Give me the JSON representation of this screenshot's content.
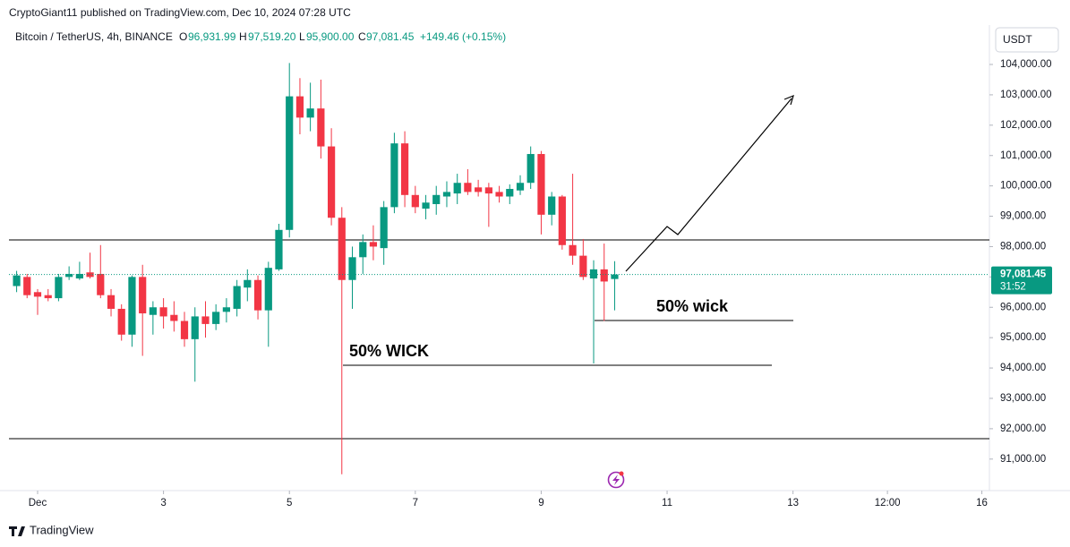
{
  "header": {
    "publisher": "CryptoGiant11 published on TradingView.com, Dec 10, 2024 07:28 UTC"
  },
  "legend": {
    "symbol": "Bitcoin / TetherUS, 4h, BINANCE",
    "o_label": "O",
    "o": "96,931.99",
    "h_label": "H",
    "h": "97,519.20",
    "l_label": "L",
    "l": "95,900.00",
    "c_label": "C",
    "c": "97,081.45",
    "change": "+149.46 (+0.15%)"
  },
  "currency": "USDT",
  "footer": "TradingView",
  "chart_data": {
    "type": "candlestick",
    "x": [
      0.667,
      0.833,
      1,
      1.167,
      1.333,
      1.5,
      1.667,
      1.833,
      2,
      2.167,
      2.333,
      2.5,
      2.667,
      2.833,
      3,
      3.167,
      3.333,
      3.5,
      3.667,
      3.833,
      4,
      4.167,
      4.333,
      4.5,
      4.667,
      4.833,
      5,
      5.167,
      5.333,
      5.5,
      5.667,
      5.833,
      6,
      6.167,
      6.333,
      6.5,
      6.667,
      6.833,
      7,
      7.167,
      7.333,
      7.5,
      7.667,
      7.833,
      8,
      8.167,
      8.333,
      8.5,
      8.667,
      8.833,
      9,
      9.167,
      9.333,
      9.5,
      9.667,
      9.833,
      10,
      10.167
    ],
    "open": [
      96700,
      97000,
      96500,
      96400,
      96300,
      97000,
      96950,
      97150,
      97100,
      96400,
      95950,
      95100,
      97000,
      95750,
      96000,
      95750,
      95550,
      94950,
      95700,
      95450,
      95850,
      95950,
      96650,
      96900,
      95900,
      97250,
      98550,
      102950,
      102250,
      102550,
      101300,
      98950,
      96900,
      97650,
      98150,
      97950,
      99300,
      101400,
      99700,
      99250,
      99400,
      99650,
      99750,
      100100,
      99950,
      99950,
      99800,
      99650,
      99850,
      100100,
      101050,
      99050,
      99650,
      98050,
      97700,
      96950,
      97250,
      96931.99
    ],
    "high": [
      97200,
      97100,
      96600,
      96600,
      97100,
      97350,
      97500,
      97800,
      98050,
      96600,
      96100,
      97050,
      97400,
      96200,
      96300,
      96200,
      95850,
      96000,
      96200,
      96100,
      96300,
      96900,
      97250,
      97050,
      97500,
      98750,
      104050,
      103550,
      103400,
      103500,
      101900,
      99300,
      98000,
      98400,
      98700,
      99500,
      101750,
      101800,
      100000,
      99700,
      100000,
      100150,
      100400,
      100550,
      100200,
      100100,
      100000,
      100050,
      100350,
      101300,
      101150,
      99800,
      99700,
      100400,
      98250,
      97550,
      98100,
      97519.2
    ],
    "low": [
      96500,
      96300,
      95750,
      96200,
      96200,
      96900,
      96900,
      96950,
      96300,
      95700,
      94900,
      94700,
      94400,
      95100,
      95300,
      95200,
      94700,
      93550,
      95000,
      95250,
      95500,
      95700,
      96200,
      95600,
      94700,
      97200,
      98300,
      101700,
      101800,
      100900,
      98700,
      90500,
      95950,
      97100,
      97550,
      97400,
      99100,
      99300,
      99100,
      98900,
      99050,
      99300,
      99400,
      99700,
      99650,
      98650,
      99450,
      99400,
      99700,
      99900,
      98400,
      98700,
      97900,
      97400,
      96900,
      94150,
      95550,
      95900
    ],
    "close": [
      97050,
      96400,
      96350,
      96300,
      97000,
      97100,
      97100,
      97000,
      96400,
      95950,
      95100,
      97000,
      95800,
      96000,
      95700,
      95550,
      94950,
      95700,
      95450,
      95850,
      96000,
      96700,
      96900,
      95900,
      97300,
      98550,
      102950,
      102250,
      102550,
      101300,
      98950,
      96900,
      97650,
      98150,
      98000,
      99300,
      101400,
      99700,
      99300,
      99450,
      99700,
      99800,
      100100,
      99800,
      99800,
      99750,
      99650,
      99900,
      100100,
      101050,
      99050,
      99650,
      98050,
      97700,
      97000,
      97250,
      96850,
      97081.45
    ],
    "up_color": "#089981",
    "down_color": "#f23645",
    "xlim": [
      0.545,
      16.12
    ],
    "xticks": [
      {
        "value": 1,
        "label": "Dec"
      },
      3,
      5,
      7,
      9,
      11,
      13,
      {
        "value": 14.5,
        "label": "12:00"
      },
      16
    ],
    "ylim": [
      90050,
      105180
    ],
    "yticks": [
      {
        "value": 91000,
        "label": "91,000.00"
      },
      {
        "value": 92000,
        "label": "92,000.00"
      },
      {
        "value": 93000,
        "label": "93,000.00"
      },
      {
        "value": 94000,
        "label": "94,000.00"
      },
      {
        "value": 95000,
        "label": "95,000.00"
      },
      {
        "value": 96000,
        "label": "96,000.00"
      },
      {
        "value": 97000,
        "label": "97,000.00"
      },
      {
        "value": 98000,
        "label": "98,000.00"
      },
      {
        "value": 99000,
        "label": "99,000.00"
      },
      {
        "value": 100000,
        "label": "100,000.00"
      },
      {
        "value": 101000,
        "label": "101,000.00"
      },
      {
        "value": 102000,
        "label": "102,000.00"
      },
      {
        "value": 103000,
        "label": "103,000.00"
      },
      {
        "value": 104000,
        "label": "104,000.00"
      }
    ],
    "grid": false,
    "last_price_label": "97,081.45",
    "countdown": "31:52",
    "annotations": [
      "50% WICK",
      "50% wick"
    ]
  }
}
